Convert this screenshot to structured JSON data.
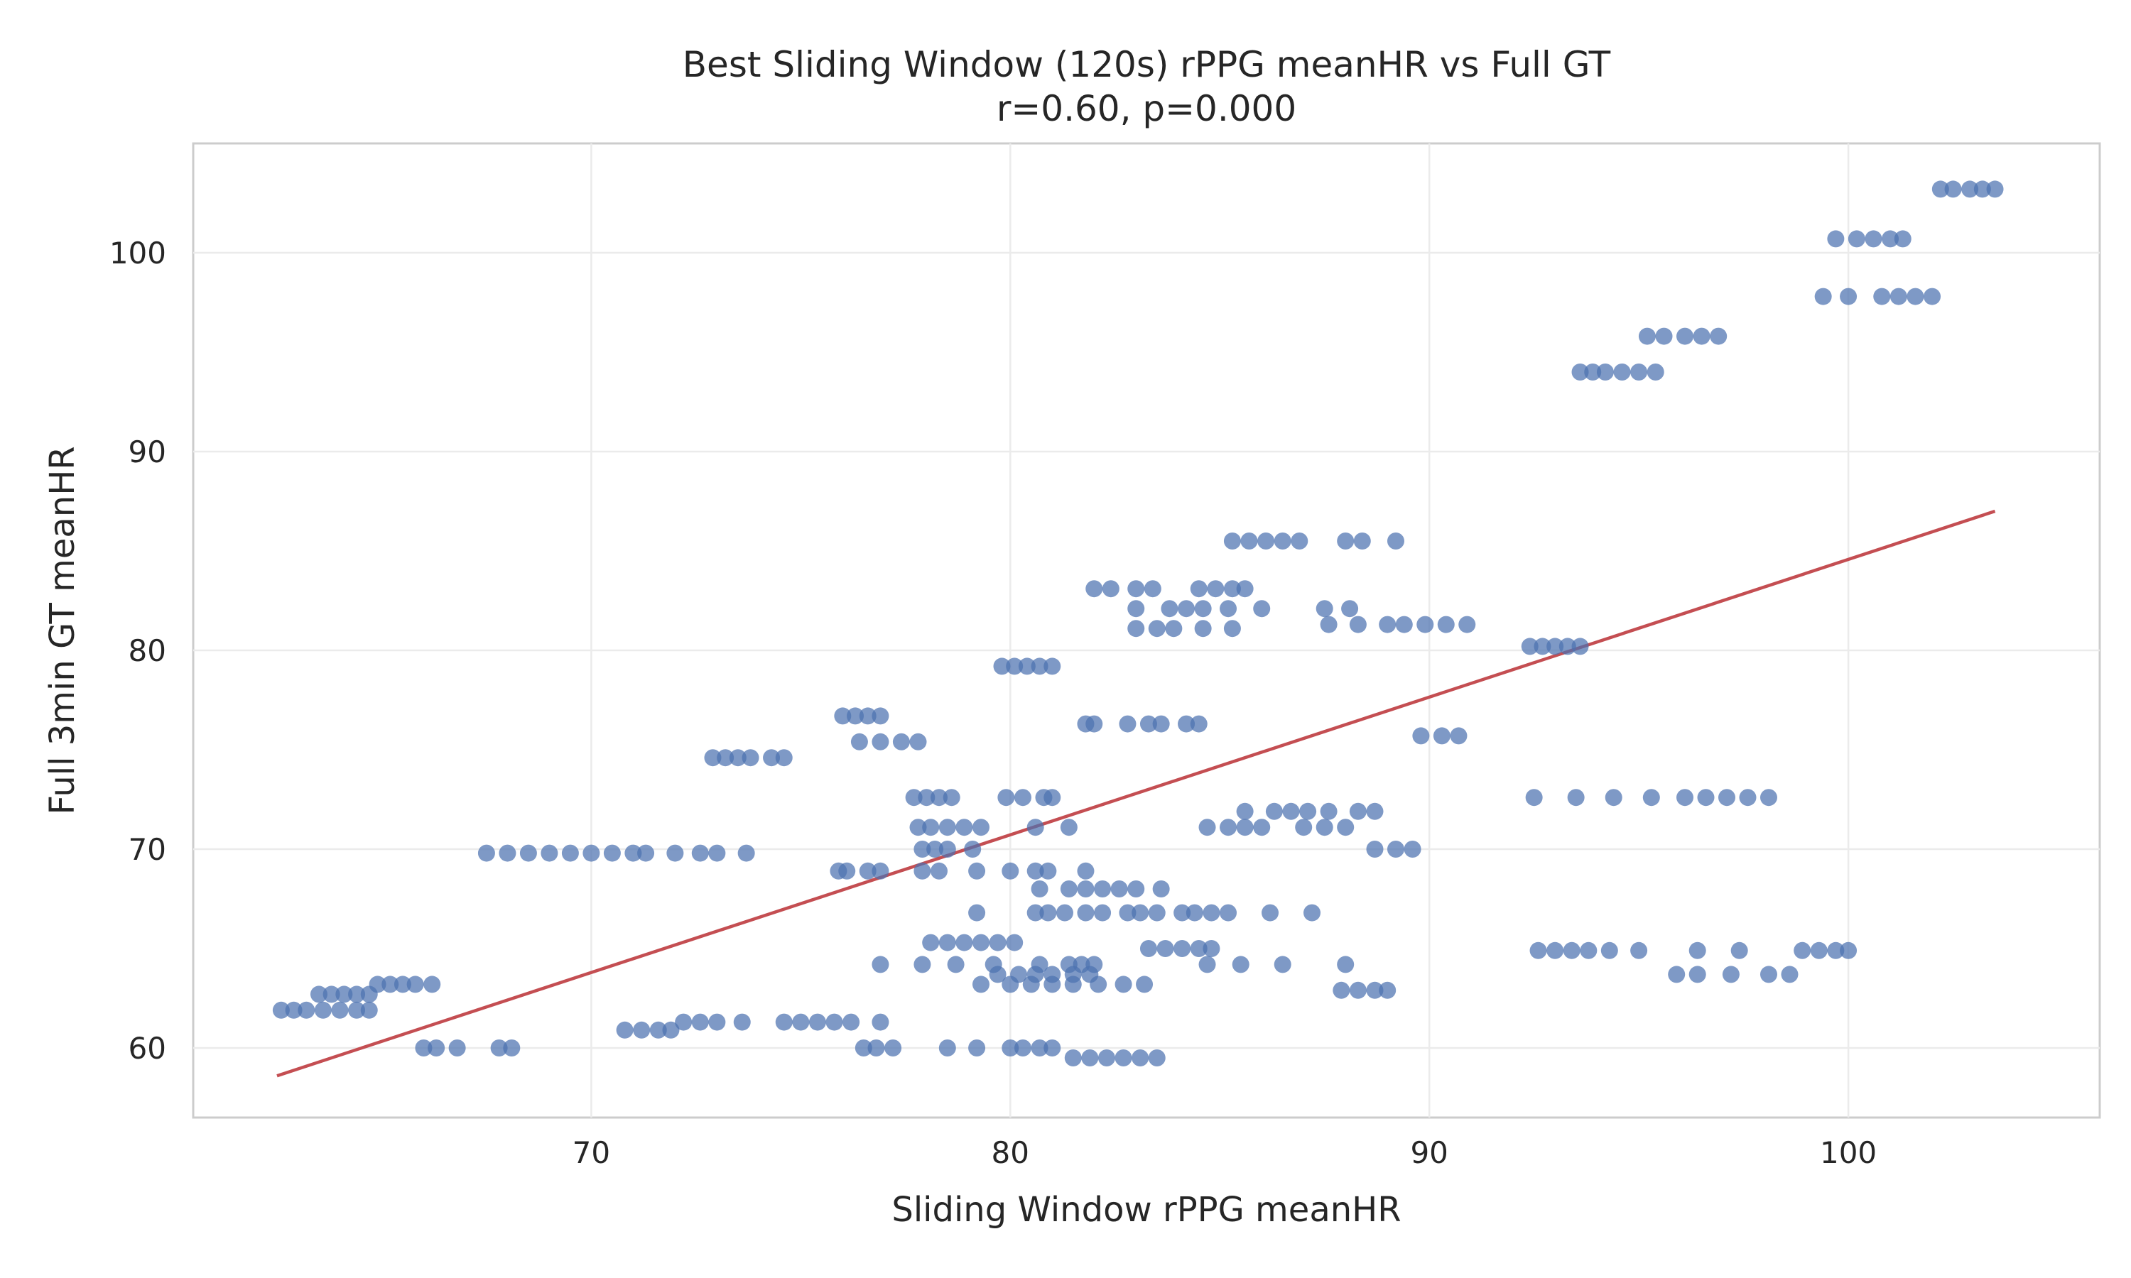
{
  "chart_data": {
    "type": "scatter",
    "title": "Best Sliding Window (120s) rPPG meanHR vs Full GT",
    "subtitle": "r=0.60, p=0.000",
    "xlabel": "Sliding Window rPPG meanHR",
    "ylabel": "Full 3min GT meanHR",
    "xlim": [
      60.5,
      106
    ],
    "ylim": [
      56.5,
      105.5
    ],
    "xticks": [
      70,
      80,
      90,
      100
    ],
    "yticks": [
      60,
      70,
      80,
      90,
      100
    ],
    "grid": true,
    "colors": {
      "points": "#4c72b0",
      "fit_line": "#c44e52"
    },
    "fit_line": {
      "x": [
        62.5,
        103.5
      ],
      "y": [
        58.6,
        87.0
      ]
    },
    "groups": [
      {
        "y": 61.9,
        "x": [
          62.6,
          62.9,
          63.2,
          63.6,
          64.0,
          64.4,
          64.7
        ]
      },
      {
        "y": 62.7,
        "x": [
          63.5,
          63.8,
          64.1,
          64.4,
          64.7
        ]
      },
      {
        "y": 63.2,
        "x": [
          64.9,
          65.2,
          65.5,
          65.8,
          66.2
        ]
      },
      {
        "y": 60.0,
        "x": [
          66.0,
          66.3,
          66.8,
          67.8,
          68.1
        ]
      },
      {
        "y": 69.8,
        "x": [
          67.5,
          68.0,
          68.5,
          69.0,
          69.5,
          70.0,
          70.5,
          71.0,
          71.3,
          72.0,
          72.6,
          73.0,
          73.7
        ]
      },
      {
        "y": 60.9,
        "x": [
          70.8,
          71.2,
          71.6,
          71.9
        ]
      },
      {
        "y": 61.3,
        "x": [
          72.2,
          72.6,
          73.0,
          73.6,
          74.6,
          75.0,
          75.4,
          75.8,
          76.2,
          76.9
        ]
      },
      {
        "y": 74.6,
        "x": [
          72.9,
          73.2,
          73.5,
          73.8,
          74.3,
          74.6
        ]
      },
      {
        "y": 76.7,
        "x": [
          76.0,
          76.3,
          76.6,
          76.9
        ]
      },
      {
        "y": 75.4,
        "x": [
          76.4,
          76.9,
          77.4,
          77.8
        ]
      },
      {
        "y": 68.9,
        "x": [
          75.9,
          76.1,
          76.6,
          76.9,
          77.9,
          78.3,
          79.2,
          80.0,
          80.6,
          80.9,
          81.8
        ]
      },
      {
        "y": 60.0,
        "x": [
          76.5,
          76.8,
          77.2,
          78.5,
          79.2,
          80.0,
          80.3,
          80.7,
          81.0
        ]
      },
      {
        "y": 64.2,
        "x": [
          76.9,
          77.9,
          78.7,
          79.6,
          80.7,
          81.4,
          81.7,
          82.0,
          84.7,
          85.5,
          86.5,
          88.0
        ]
      },
      {
        "y": 72.6,
        "x": [
          77.7,
          78.0,
          78.3,
          78.6,
          79.9,
          80.3,
          80.8,
          81.0
        ]
      },
      {
        "y": 71.1,
        "x": [
          77.8,
          78.1,
          78.5,
          78.9,
          79.3,
          80.6,
          81.4
        ]
      },
      {
        "y": 70.0,
        "x": [
          77.9,
          78.2,
          78.5,
          79.1
        ]
      },
      {
        "y": 65.3,
        "x": [
          78.1,
          78.5,
          78.9,
          79.3,
          79.7,
          80.1
        ]
      },
      {
        "y": 63.2,
        "x": [
          79.3,
          80.0,
          80.5,
          81.0,
          81.5,
          82.1,
          82.7,
          83.2
        ]
      },
      {
        "y": 79.2,
        "x": [
          79.8,
          80.1,
          80.4,
          80.7,
          81.0
        ]
      },
      {
        "y": 63.7,
        "x": [
          79.7,
          80.2,
          80.6,
          81.0,
          81.5,
          81.9
        ]
      },
      {
        "y": 66.8,
        "x": [
          79.2,
          80.6,
          80.9,
          81.3,
          81.8,
          82.2,
          82.8,
          83.1,
          83.5,
          84.1,
          84.4,
          84.8,
          85.2,
          86.2,
          87.2
        ]
      },
      {
        "y": 68.0,
        "x": [
          80.7,
          81.4,
          81.8,
          82.2,
          82.6,
          83.0,
          83.6
        ]
      },
      {
        "y": 59.5,
        "x": [
          81.5,
          81.9,
          82.3,
          82.7,
          83.1,
          83.5
        ]
      },
      {
        "y": 76.3,
        "x": [
          81.8,
          82.0,
          82.8,
          83.3,
          83.6,
          84.2,
          84.5
        ]
      },
      {
        "y": 83.1,
        "x": [
          82.0,
          82.4,
          83.0,
          83.4,
          84.5,
          84.9,
          85.3,
          85.6
        ]
      },
      {
        "y": 82.1,
        "x": [
          83.0,
          83.8,
          84.2,
          84.6,
          85.2,
          86.0,
          87.5,
          88.1
        ]
      },
      {
        "y": 81.1,
        "x": [
          83.0,
          83.5,
          83.9,
          84.6,
          85.3
        ]
      },
      {
        "y": 65.0,
        "x": [
          83.3,
          83.7,
          84.1,
          84.5,
          84.8
        ]
      },
      {
        "y": 71.1,
        "x": [
          84.7,
          85.2,
          85.6,
          86.0,
          87.0,
          87.5,
          88.0
        ]
      },
      {
        "y": 71.9,
        "x": [
          85.6,
          86.3,
          86.7,
          87.1,
          87.6,
          88.3,
          88.7
        ]
      },
      {
        "y": 85.5,
        "x": [
          85.3,
          85.7,
          86.1,
          86.5,
          86.9,
          88.0,
          88.4,
          89.2
        ]
      },
      {
        "y": 62.9,
        "x": [
          87.9,
          88.3,
          88.7,
          89.0
        ]
      },
      {
        "y": 81.3,
        "x": [
          87.6,
          88.3,
          89.0,
          89.4,
          89.9,
          90.4,
          90.9
        ]
      },
      {
        "y": 75.7,
        "x": [
          89.8,
          90.3,
          90.7
        ]
      },
      {
        "y": 70.0,
        "x": [
          88.7,
          89.2,
          89.6
        ]
      },
      {
        "y": 80.2,
        "x": [
          92.4,
          92.7,
          93.0,
          93.3,
          93.6
        ]
      },
      {
        "y": 72.6,
        "x": [
          92.5,
          93.5,
          94.4,
          95.3,
          96.1,
          96.6,
          97.1,
          97.6,
          98.1
        ]
      },
      {
        "y": 64.9,
        "x": [
          92.6,
          93.0,
          93.4,
          93.8,
          94.3,
          95.0
        ]
      },
      {
        "y": 63.7,
        "x": [
          95.9,
          96.4,
          97.2,
          98.1,
          98.6
        ]
      },
      {
        "y": 64.9,
        "x": [
          96.4,
          97.4,
          98.9,
          99.3,
          99.7,
          100.0
        ]
      },
      {
        "y": 94.0,
        "x": [
          93.6,
          93.9,
          94.2,
          94.6,
          95.0,
          95.4
        ]
      },
      {
        "y": 95.8,
        "x": [
          95.2,
          95.6,
          96.1,
          96.5,
          96.9
        ]
      },
      {
        "y": 97.8,
        "x": [
          99.4,
          100.0,
          100.8,
          101.2,
          101.6,
          102.0
        ]
      },
      {
        "y": 100.7,
        "x": [
          99.7,
          100.2,
          100.6,
          101.0,
          101.3
        ]
      },
      {
        "y": 103.2,
        "x": [
          102.2,
          102.5,
          102.9,
          103.2,
          103.5
        ]
      }
    ]
  }
}
